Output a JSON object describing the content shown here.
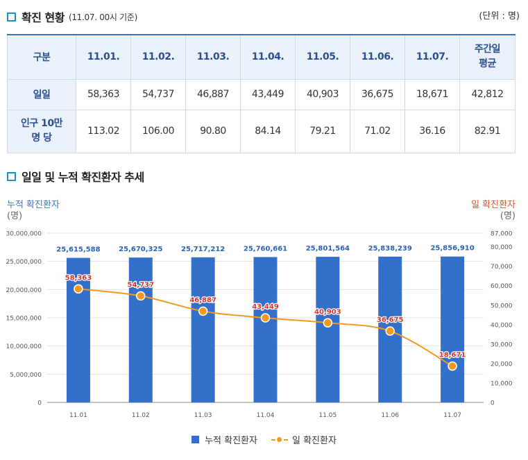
{
  "section1": {
    "title": "확진 현황",
    "subtitle": "(11.07. 00시 기준)",
    "unit": "(단위 : 명)"
  },
  "table": {
    "header_first": "구분",
    "columns": [
      "11.01.",
      "11.02.",
      "11.03.",
      "11.04.",
      "11.05.",
      "11.06.",
      "11.07."
    ],
    "avg_header_line1": "주간일",
    "avg_header_line2": "평균",
    "rows": [
      {
        "label_line1": "일일",
        "label_line2": "",
        "values": [
          "58,363",
          "54,737",
          "46,887",
          "43,449",
          "40,903",
          "36,675",
          "18,671",
          "42,812"
        ]
      },
      {
        "label_line1": "인구 10만",
        "label_line2": "명 당",
        "values": [
          "113.02",
          "106.00",
          "90.80",
          "84.14",
          "79.21",
          "71.02",
          "36.16",
          "82.91"
        ]
      }
    ]
  },
  "section2": {
    "title": "일일 및 누적 확진환자 추세"
  },
  "left_axis": {
    "title": "누적 확진환자",
    "unit": "(명)"
  },
  "right_axis": {
    "title": "일 확진환자",
    "unit": "(명)"
  },
  "legend": {
    "bar": "누적 확진환자",
    "line": "일 확진환자"
  },
  "chart_data": {
    "type": "bar",
    "categories": [
      "11.01",
      "11.02",
      "11.03",
      "11.04",
      "11.05",
      "11.06",
      "11.07"
    ],
    "series": [
      {
        "name": "누적 확진환자",
        "type": "bar",
        "axis": "left",
        "color": "#3470c9",
        "values": [
          25615588,
          25670325,
          25717212,
          25760661,
          25801564,
          25838239,
          25856910
        ],
        "labels": [
          "25,615,588",
          "25,670,325",
          "25,717,212",
          "25,760,661",
          "25,801,564",
          "25,838,239",
          "25,856,910"
        ]
      },
      {
        "name": "일 확진환자",
        "type": "line",
        "axis": "right",
        "color": "#f39a1e",
        "values": [
          58363,
          54737,
          46887,
          43449,
          40903,
          36675,
          18671
        ],
        "labels": [
          "58,363",
          "54,737",
          "46,887",
          "43,449",
          "40,903",
          "36,675",
          "18,671"
        ]
      }
    ],
    "left_ylim": [
      0,
      30000000
    ],
    "left_ticks": [
      0,
      5000000,
      10000000,
      15000000,
      20000000,
      25000000,
      30000000
    ],
    "left_tick_labels": [
      "0",
      "5,000,000",
      "10,000,000",
      "15,000,000",
      "20,000,000",
      "25,000,000",
      "30,000,000"
    ],
    "right_ylim": [
      0,
      87000
    ],
    "right_ticks": [
      0,
      10000,
      20000,
      30000,
      40000,
      50000,
      60000,
      70000,
      80000,
      87000
    ],
    "right_tick_labels": [
      "0",
      "10,000",
      "20,000",
      "30,000",
      "40,000",
      "50,000",
      "60,000",
      "70,000",
      "80,000",
      "87,000"
    ],
    "grid": true,
    "legend_position": "bottom-center",
    "label_color_bar": "#2a62b8",
    "label_color_line": "#d9342b"
  }
}
